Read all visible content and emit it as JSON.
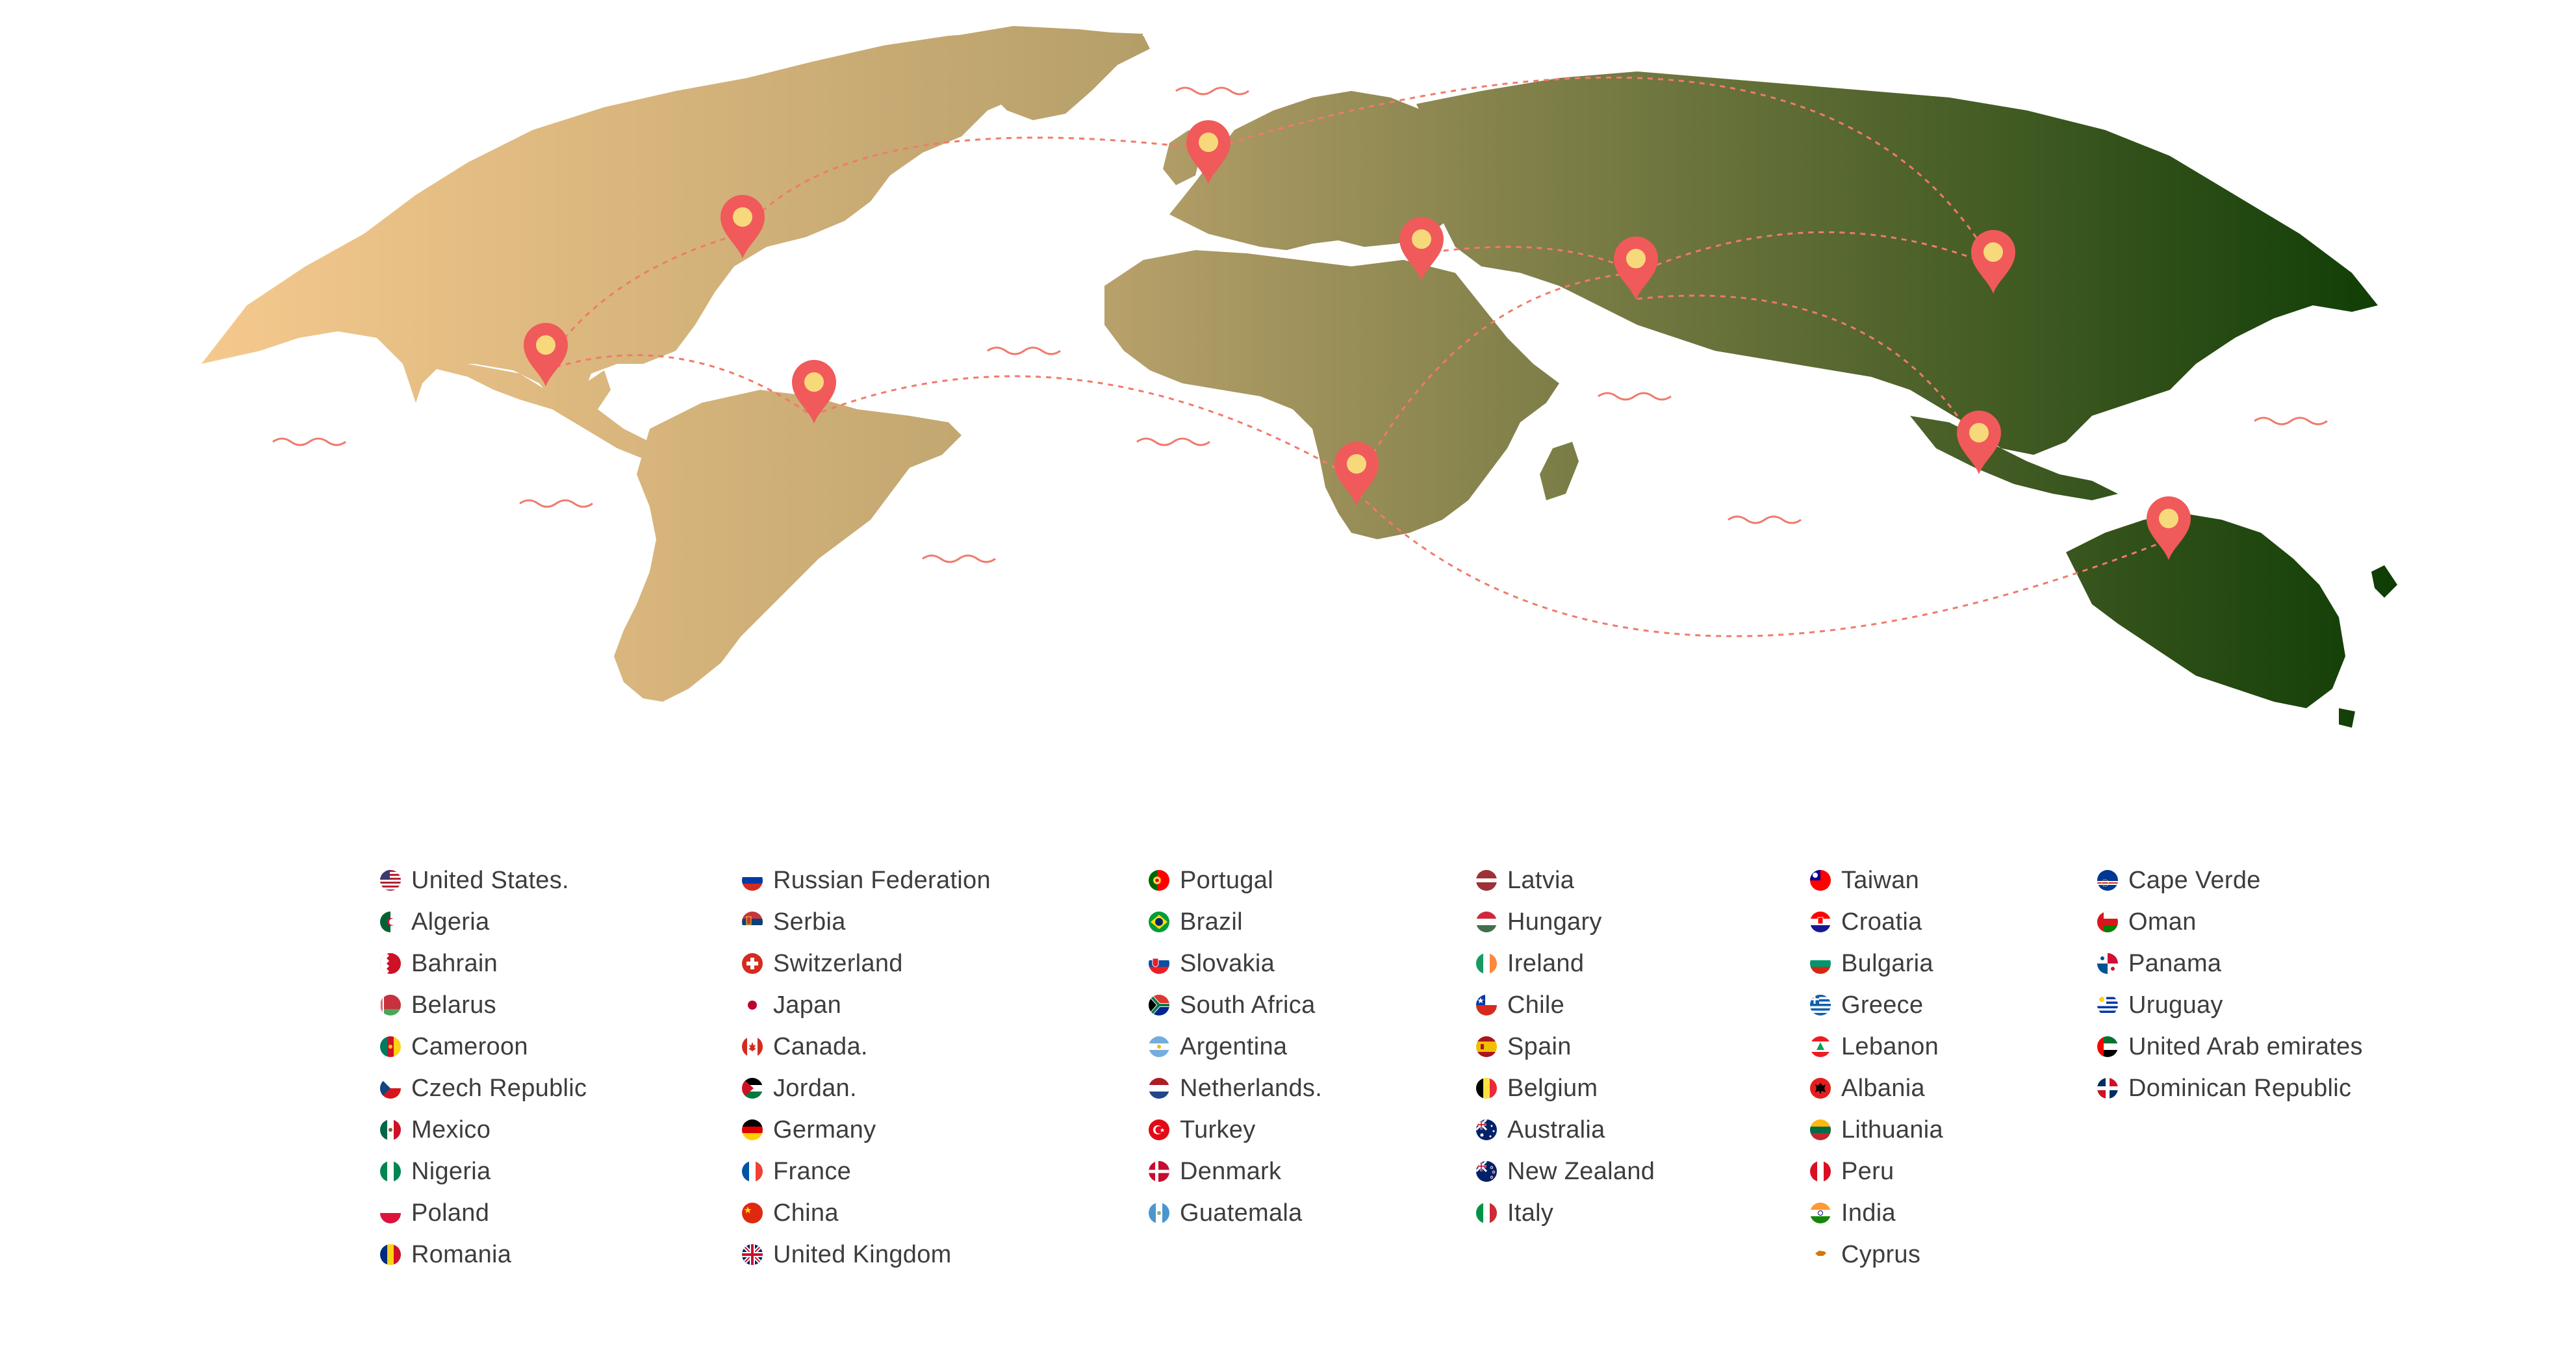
{
  "colors": {
    "land_gradient_start": "#f6c98e",
    "land_gradient_mid": "#b7a06a",
    "land_gradient_end": "#0f3d05",
    "pin": "#f05a5a",
    "pin_dot": "#f7d97c",
    "route": "#f07a6a",
    "wave": "#f07a6a",
    "text": "#3d3d3d"
  },
  "map": {
    "pins": [
      {
        "id": "pin-mexico",
        "icon": "map-pin-icon"
      },
      {
        "id": "pin-north-america",
        "icon": "map-pin-icon"
      },
      {
        "id": "pin-south-america",
        "icon": "map-pin-icon"
      },
      {
        "id": "pin-europe",
        "icon": "map-pin-icon"
      },
      {
        "id": "pin-middle-east",
        "icon": "map-pin-icon"
      },
      {
        "id": "pin-central-asia",
        "icon": "map-pin-icon"
      },
      {
        "id": "pin-east-asia",
        "icon": "map-pin-icon"
      },
      {
        "id": "pin-southeast-asia",
        "icon": "map-pin-icon"
      },
      {
        "id": "pin-africa",
        "icon": "map-pin-icon"
      },
      {
        "id": "pin-australia",
        "icon": "map-pin-icon"
      }
    ]
  },
  "columns": [
    {
      "countries": [
        {
          "name": "United States.",
          "flag": "us-flag"
        },
        {
          "name": "Algeria",
          "flag": "algeria-flag"
        },
        {
          "name": "Bahrain",
          "flag": "bahrain-flag"
        },
        {
          "name": "Belarus",
          "flag": "belarus-flag"
        },
        {
          "name": "Cameroon",
          "flag": "cameroon-flag"
        },
        {
          "name": "Czech Republic",
          "flag": "czech-flag"
        },
        {
          "name": "Mexico",
          "flag": "mexico-flag"
        },
        {
          "name": "Nigeria",
          "flag": "nigeria-flag"
        },
        {
          "name": "Poland",
          "flag": "poland-flag"
        },
        {
          "name": "Romania",
          "flag": "romania-flag"
        }
      ]
    },
    {
      "countries": [
        {
          "name": "Russian Federation",
          "flag": "russia-flag"
        },
        {
          "name": "Serbia",
          "flag": "serbia-flag"
        },
        {
          "name": "Switzerland",
          "flag": "switzerland-flag"
        },
        {
          "name": "Japan",
          "flag": "japan-flag"
        },
        {
          "name": "Canada.",
          "flag": "canada-flag"
        },
        {
          "name": "Jordan.",
          "flag": "jordan-flag"
        },
        {
          "name": "Germany",
          "flag": "germany-flag"
        },
        {
          "name": "France",
          "flag": "france-flag"
        },
        {
          "name": "China",
          "flag": "china-flag"
        },
        {
          "name": "United Kingdom",
          "flag": "uk-flag"
        }
      ]
    },
    {
      "countries": [
        {
          "name": "Portugal",
          "flag": "portugal-flag"
        },
        {
          "name": "Brazil",
          "flag": "brazil-flag"
        },
        {
          "name": "Slovakia",
          "flag": "slovakia-flag"
        },
        {
          "name": "South Africa",
          "flag": "south-africa-flag"
        },
        {
          "name": "Argentina",
          "flag": "argentina-flag"
        },
        {
          "name": "Netherlands.",
          "flag": "netherlands-flag"
        },
        {
          "name": "Turkey",
          "flag": "turkey-flag"
        },
        {
          "name": "Denmark",
          "flag": "denmark-flag"
        },
        {
          "name": "Guatemala",
          "flag": "guatemala-flag"
        }
      ]
    },
    {
      "countries": [
        {
          "name": "Latvia",
          "flag": "latvia-flag"
        },
        {
          "name": "Hungary",
          "flag": "hungary-flag"
        },
        {
          "name": "Ireland",
          "flag": "ireland-flag"
        },
        {
          "name": "Chile",
          "flag": "chile-flag"
        },
        {
          "name": "Spain",
          "flag": "spain-flag"
        },
        {
          "name": "Belgium",
          "flag": "belgium-flag"
        },
        {
          "name": "Australia",
          "flag": "australia-flag"
        },
        {
          "name": "New Zealand",
          "flag": "new-zealand-flag"
        },
        {
          "name": "Italy",
          "flag": "italy-flag"
        }
      ]
    },
    {
      "countries": [
        {
          "name": "Taiwan",
          "flag": "taiwan-flag"
        },
        {
          "name": "Croatia",
          "flag": "croatia-flag"
        },
        {
          "name": "Bulgaria",
          "flag": "bulgaria-flag"
        },
        {
          "name": "Greece",
          "flag": "greece-flag"
        },
        {
          "name": "Lebanon",
          "flag": "lebanon-flag"
        },
        {
          "name": "Albania",
          "flag": "albania-flag"
        },
        {
          "name": "Lithuania",
          "flag": "lithuania-flag"
        },
        {
          "name": "Peru",
          "flag": "peru-flag"
        },
        {
          "name": "India",
          "flag": "india-flag"
        },
        {
          "name": "Cyprus",
          "flag": "cyprus-flag"
        }
      ]
    },
    {
      "countries": [
        {
          "name": "Cape Verde",
          "flag": "cape-verde-flag"
        },
        {
          "name": "Oman",
          "flag": "oman-flag"
        },
        {
          "name": "Panama",
          "flag": "panama-flag"
        },
        {
          "name": "Uruguay",
          "flag": "uruguay-flag"
        },
        {
          "name": "United Arab emirates",
          "flag": "uae-flag"
        },
        {
          "name": "Dominican Republic",
          "flag": "dominican-republic-flag"
        }
      ]
    }
  ]
}
